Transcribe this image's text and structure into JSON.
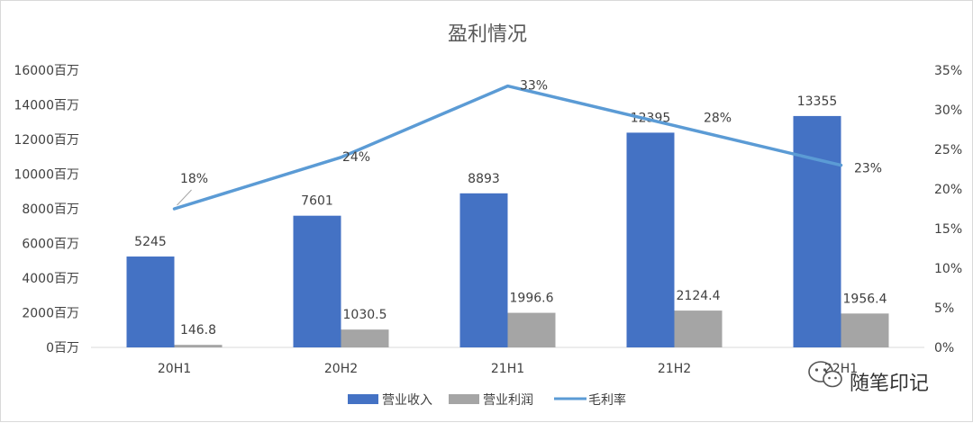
{
  "chart_data": {
    "type": "bar",
    "title": "盈利情况",
    "categories": [
      "20H1",
      "20H2",
      "21H1",
      "21H2",
      "22H1"
    ],
    "series": [
      {
        "name": "营业收入",
        "kind": "bar",
        "axis": "left",
        "color": "#4472c4",
        "values": [
          5245,
          7601,
          8893,
          12395,
          13355
        ],
        "labels": [
          "5245",
          "7601",
          "8893",
          "12395",
          "13355"
        ]
      },
      {
        "name": "营业利润",
        "kind": "bar",
        "axis": "left",
        "color": "#a5a5a5",
        "values": [
          146.8,
          1030.5,
          1996.6,
          2124.4,
          1956.4
        ],
        "labels": [
          "146.8",
          "1030.5",
          "1996.6",
          "2124.4",
          "1956.4"
        ]
      },
      {
        "name": "毛利率",
        "kind": "line",
        "axis": "right",
        "color": "#5b9bd5",
        "values": [
          17.5,
          24,
          33,
          28,
          23
        ],
        "labels": [
          "18%",
          "24%",
          "33%",
          "28%",
          "23%"
        ]
      }
    ],
    "y_left": {
      "min": 0,
      "max": 16000,
      "step": 2000,
      "suffix": "百万"
    },
    "y_right": {
      "min": 0,
      "max": 35,
      "step": 5,
      "suffix": "%"
    },
    "grid": false,
    "legend": "bottom"
  },
  "watermark": {
    "text": "随笔印记",
    "icon": "wechat-icon"
  }
}
